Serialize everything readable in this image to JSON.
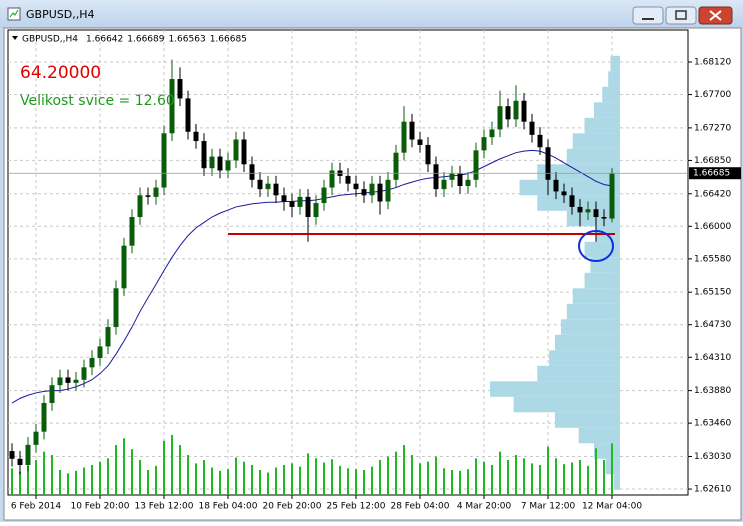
{
  "chart_data": {
    "type": "candlestick",
    "window_title": "GBPUSD,,H4",
    "symbol": "GBPUSD,,H4",
    "header_values": [
      "1.66642",
      "1.66689",
      "1.66563",
      "1.66685"
    ],
    "annotation_value": "64.20000",
    "annotation_text": "Velikost svice = 12.60",
    "categories": [
      null,
      null,
      null,
      "6 Feb 2014",
      null,
      null,
      null,
      null,
      null,
      null,
      null,
      "10 Feb 20:00",
      null,
      null,
      null,
      null,
      null,
      null,
      null,
      "13 Feb 12:00",
      null,
      null,
      null,
      null,
      null,
      null,
      null,
      "18 Feb 04:00",
      null,
      null,
      null,
      null,
      null,
      null,
      null,
      "20 Feb 20:00",
      null,
      null,
      null,
      null,
      null,
      null,
      null,
      "25 Feb 12:00",
      null,
      null,
      null,
      null,
      null,
      null,
      null,
      "28 Feb 04:00",
      null,
      null,
      null,
      null,
      null,
      null,
      null,
      "4 Mar 20:00",
      null,
      null,
      null,
      null,
      null,
      null,
      null,
      "7 Mar 12:00",
      null,
      null,
      null,
      null,
      null,
      null,
      null,
      "12 Mar 04:00"
    ],
    "open": [
      1.631,
      1.63,
      1.6292,
      1.6318,
      1.6335,
      1.6372,
      1.6395,
      1.6405,
      1.6398,
      1.6402,
      1.6418,
      1.643,
      1.6445,
      1.647,
      1.652,
      1.6575,
      1.6612,
      1.664,
      1.6638,
      1.665,
      1.672,
      1.679,
      1.6765,
      1.6722,
      1.671,
      1.6675,
      1.669,
      1.6672,
      1.6685,
      1.6712,
      1.668,
      1.666,
      1.6648,
      1.6655,
      1.664,
      1.6632,
      1.6625,
      1.6638,
      1.6612,
      1.663,
      1.665,
      1.6672,
      1.6665,
      1.6655,
      1.6648,
      1.664,
      1.6655,
      1.6632,
      1.666,
      1.6695,
      1.6735,
      1.6712,
      1.6705,
      1.668,
      1.6648,
      1.666,
      1.6668,
      1.6652,
      1.666,
      1.6698,
      1.6715,
      1.6725,
      1.6755,
      1.6738,
      1.6762,
      1.6735,
      1.6718,
      1.6702,
      1.666,
      1.6645,
      1.664,
      1.6625,
      1.6618,
      1.6622,
      1.6612,
      1.661
    ],
    "high": [
      1.632,
      1.631,
      1.6328,
      1.6345,
      1.6382,
      1.6405,
      1.6415,
      1.6415,
      1.6412,
      1.6428,
      1.644,
      1.6455,
      1.648,
      1.653,
      1.6585,
      1.6622,
      1.665,
      1.665,
      1.666,
      1.673,
      1.6815,
      1.6805,
      1.6775,
      1.6732,
      1.672,
      1.67,
      1.67,
      1.6695,
      1.6722,
      1.6722,
      1.669,
      1.667,
      1.6665,
      1.6665,
      1.665,
      1.6642,
      1.6648,
      1.6648,
      1.664,
      1.666,
      1.6682,
      1.6682,
      1.6675,
      1.6665,
      1.6658,
      1.6665,
      1.6665,
      1.667,
      1.6705,
      1.6755,
      1.6745,
      1.6722,
      1.6715,
      1.669,
      1.667,
      1.6678,
      1.6678,
      1.667,
      1.6708,
      1.6725,
      1.6735,
      1.6775,
      1.6765,
      1.6782,
      1.6772,
      1.6745,
      1.6728,
      1.6712,
      1.667,
      1.6655,
      1.665,
      1.6635,
      1.6632,
      1.6632,
      1.6622,
      1.6675
    ],
    "low": [
      1.629,
      1.628,
      1.6284,
      1.6308,
      1.6325,
      1.6362,
      1.6385,
      1.6388,
      1.6388,
      1.6392,
      1.6408,
      1.642,
      1.6435,
      1.646,
      1.651,
      1.6565,
      1.6602,
      1.6628,
      1.6628,
      1.664,
      1.671,
      1.6755,
      1.6712,
      1.67,
      1.6665,
      1.6665,
      1.6662,
      1.6662,
      1.6675,
      1.667,
      1.665,
      1.6638,
      1.6638,
      1.663,
      1.662,
      1.6612,
      1.6615,
      1.658,
      1.6602,
      1.662,
      1.664,
      1.6655,
      1.6645,
      1.6638,
      1.663,
      1.663,
      1.6615,
      1.6622,
      1.665,
      1.6685,
      1.6702,
      1.6695,
      1.667,
      1.6638,
      1.6638,
      1.665,
      1.6642,
      1.6642,
      1.665,
      1.6688,
      1.6705,
      1.6715,
      1.6728,
      1.6728,
      1.6725,
      1.6708,
      1.6692,
      1.664,
      1.6635,
      1.663,
      1.6615,
      1.66,
      1.6608,
      1.658,
      1.66,
      1.6605
    ],
    "close": [
      1.63,
      1.6292,
      1.6318,
      1.6335,
      1.6372,
      1.6395,
      1.6405,
      1.6398,
      1.6402,
      1.6418,
      1.643,
      1.6445,
      1.647,
      1.652,
      1.6575,
      1.6612,
      1.664,
      1.6638,
      1.665,
      1.672,
      1.679,
      1.6765,
      1.6722,
      1.671,
      1.6675,
      1.669,
      1.6672,
      1.6685,
      1.6712,
      1.668,
      1.666,
      1.6648,
      1.6655,
      1.664,
      1.6632,
      1.6625,
      1.6638,
      1.6612,
      1.663,
      1.665,
      1.6672,
      1.6665,
      1.6655,
      1.6648,
      1.664,
      1.6655,
      1.6632,
      1.666,
      1.6695,
      1.6735,
      1.6712,
      1.6705,
      1.668,
      1.6648,
      1.666,
      1.6668,
      1.6652,
      1.666,
      1.6698,
      1.6715,
      1.6725,
      1.6755,
      1.6738,
      1.6762,
      1.6735,
      1.6718,
      1.6702,
      1.666,
      1.6645,
      1.664,
      1.6625,
      1.6618,
      1.6622,
      1.6612,
      1.661,
      1.6668
    ],
    "ma": [
      1.6372,
      1.6378,
      1.6382,
      1.6385,
      1.6387,
      1.6388,
      1.6388,
      1.639,
      1.6393,
      1.6397,
      1.6402,
      1.641,
      1.642,
      1.6435,
      1.6452,
      1.647,
      1.649,
      1.6508,
      1.6525,
      1.6543,
      1.656,
      1.6575,
      1.6588,
      1.6598,
      1.6605,
      1.6612,
      1.6617,
      1.6621,
      1.6625,
      1.6627,
      1.6629,
      1.663,
      1.6631,
      1.6631,
      1.6632,
      1.6632,
      1.6633,
      1.6633,
      1.6634,
      1.6636,
      1.6638,
      1.664,
      1.6641,
      1.6642,
      1.6643,
      1.6644,
      1.6645,
      1.6647,
      1.665,
      1.6654,
      1.6657,
      1.666,
      1.6662,
      1.6663,
      1.6664,
      1.6665,
      1.6666,
      1.6668,
      1.6672,
      1.6677,
      1.6682,
      1.6687,
      1.6691,
      1.6695,
      1.6697,
      1.6698,
      1.6697,
      1.6693,
      1.6688,
      1.6682,
      1.6676,
      1.667,
      1.6664,
      1.6658,
      1.6654,
      1.6652
    ],
    "volume": [
      3200,
      2800,
      3500,
      4200,
      5200,
      4800,
      3000,
      2600,
      2900,
      3300,
      3600,
      4000,
      4400,
      6000,
      6800,
      5500,
      4200,
      3000,
      3500,
      6500,
      7200,
      6000,
      4800,
      3800,
      4200,
      3300,
      2900,
      3100,
      4500,
      4000,
      3600,
      3000,
      2700,
      3300,
      3600,
      3800,
      3400,
      5000,
      4400,
      3900,
      4300,
      3500,
      3200,
      3100,
      3000,
      3400,
      4200,
      4600,
      5200,
      6000,
      4800,
      3800,
      4000,
      4600,
      3200,
      3000,
      2900,
      3100,
      4400,
      4000,
      3600,
      5200,
      4200,
      4800,
      4400,
      3800,
      3600,
      5800,
      4400,
      3700,
      3900,
      4200,
      3500,
      5600,
      4200,
      6200
    ],
    "profile": {
      "levels": [
        1.627,
        1.629,
        1.631,
        1.633,
        1.635,
        1.637,
        1.639,
        1.641,
        1.643,
        1.645,
        1.647,
        1.649,
        1.651,
        1.653,
        1.655,
        1.657,
        1.659,
        1.661,
        1.663,
        1.665,
        1.667,
        1.669,
        1.671,
        1.673,
        1.675,
        1.677,
        1.679,
        1.681
      ],
      "values": [
        5,
        12,
        22,
        35,
        55,
        90,
        110,
        70,
        60,
        55,
        50,
        45,
        40,
        30,
        25,
        30,
        20,
        45,
        70,
        85,
        70,
        45,
        40,
        30,
        22,
        15,
        10,
        8
      ]
    },
    "hline": 1.659,
    "last_price": {
      "value": 1.66685,
      "label": "1.66685"
    },
    "ylim": [
      1.62533,
      1.68533
    ],
    "yticks": [
      {
        "value": 1.6812,
        "label": "1.68120"
      },
      {
        "value": 1.677,
        "label": "1.67700"
      },
      {
        "value": 1.6727,
        "label": "1.67270"
      },
      {
        "value": 1.6685,
        "label": "1.66850"
      },
      {
        "value": 1.6642,
        "label": "1.66420"
      },
      {
        "value": 1.66,
        "label": "1.66000"
      },
      {
        "value": 1.6558,
        "label": "1.65580"
      },
      {
        "value": 1.6515,
        "label": "1.65150"
      },
      {
        "value": 1.6473,
        "label": "1.64730"
      },
      {
        "value": 1.6431,
        "label": "1.64310"
      },
      {
        "value": 1.6388,
        "label": "1.63880"
      },
      {
        "value": 1.6346,
        "label": "1.63460"
      },
      {
        "value": 1.6303,
        "label": "1.63030"
      },
      {
        "value": 1.6261,
        "label": "1.62610"
      }
    ],
    "grid": true,
    "bull_color": "#0a5c0a",
    "bear_color": "#000000",
    "ma_color": "#1a1a9c",
    "volume_color": "#22b822",
    "profile_color": "#add8e6",
    "hline_color": "#c00000",
    "annotation_value_color": "#e00000",
    "annotation_text_color": "#1f9a1f"
  }
}
